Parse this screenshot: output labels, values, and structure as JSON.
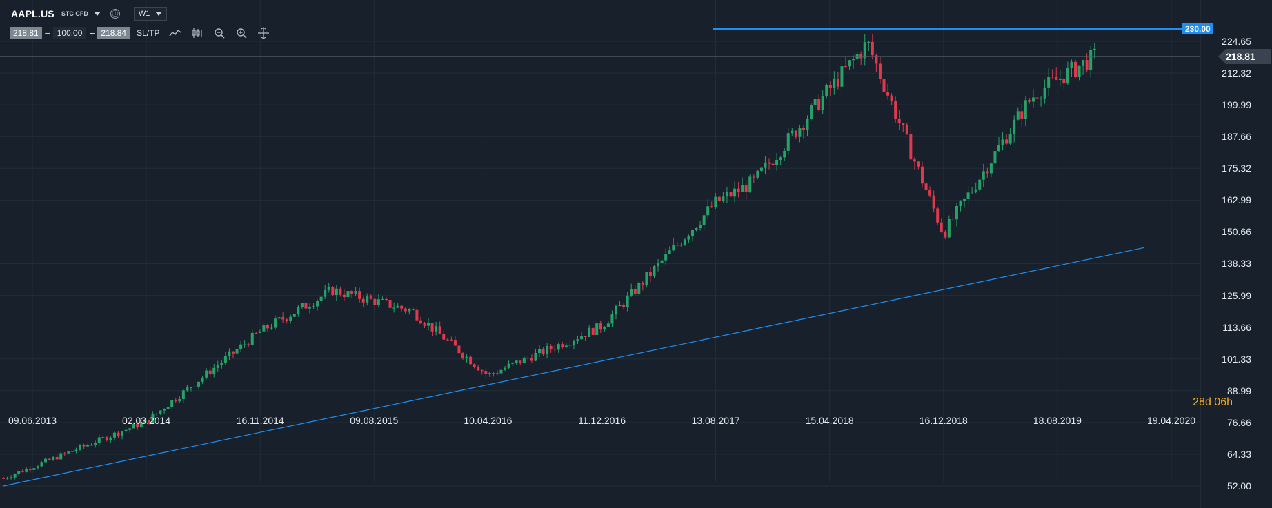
{
  "toolbar": {
    "symbol": "AAPL.US",
    "symbol_type": "STC CFD",
    "timeframe": "W1",
    "info_icon": "ⓘ",
    "bid": "218.81",
    "qty_minus": "−",
    "quantity": "100.00",
    "qty_plus": "+",
    "ask": "218.84",
    "sltp_label": "SL/TP",
    "tools": [
      "line-chart-icon",
      "candlestick-icon",
      "zoom-out-icon",
      "zoom-in-icon",
      "crosshair-icon"
    ]
  },
  "countdown": {
    "days": "28d",
    "hours": "06h"
  },
  "colors": {
    "background": "#18212b",
    "bull": "#26a269",
    "bear": "#e0384d",
    "trendline": "#1f8ef1",
    "grid": "#222d38"
  },
  "chart_data": {
    "type": "candlestick",
    "timeframe": "W1",
    "y_ticks": [
      "224.65",
      "212.32",
      "199.99",
      "187.66",
      "175.32",
      "162.99",
      "150.66",
      "138.33",
      "125.99",
      "113.66",
      "101.33",
      "88.99",
      "76.66",
      "64.33",
      "52.00"
    ],
    "x_ticks": [
      "09.06.2013",
      "02.03.2014",
      "16.11.2014",
      "09.08.2015",
      "10.04.2016",
      "11.12.2016",
      "13.08.2017",
      "15.04.2018",
      "16.12.2018",
      "18.08.2019",
      "19.04.2020"
    ],
    "ylim": [
      52.0,
      224.65
    ],
    "current_price": "218.81",
    "horizontal_line": {
      "label": "230.00",
      "value": 230.0
    },
    "trendline": {
      "start": [
        "09.06.2013",
        52.0
      ],
      "end": [
        "19.04.2020",
        144.5
      ]
    },
    "key_points": [
      {
        "date": "09.06.2013",
        "close": 55
      },
      {
        "date": "02.03.2014",
        "close": 77
      },
      {
        "date": "16.11.2014",
        "close": 112
      },
      {
        "date": "09.08.2015",
        "close": 128
      },
      {
        "date": "09.08.2015",
        "close": 120
      },
      {
        "date": "10.04.2016",
        "close": 95
      },
      {
        "date": "11.12.2016",
        "close": 114
      },
      {
        "date": "13.08.2017",
        "close": 162
      },
      {
        "date": "15.04.2018",
        "close": 170
      },
      {
        "date": "15.04.2018",
        "close": 224
      },
      {
        "date": "16.12.2018",
        "close": 150
      },
      {
        "date": "16.12.2018",
        "close": 205
      },
      {
        "date": "18.08.2019",
        "close": 200
      },
      {
        "date": "18.08.2019",
        "close": 218.81
      }
    ]
  }
}
